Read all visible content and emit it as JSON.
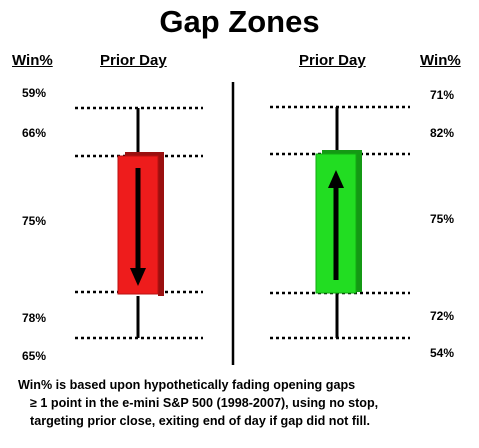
{
  "title": "Gap Zones",
  "left_panel": {
    "win_header": "Win%",
    "day_header": "Prior Day",
    "candle": "bearish",
    "candle_color": "#ee1c1c",
    "percentages": [
      "59%",
      "66%",
      "75%",
      "78%",
      "65%"
    ]
  },
  "right_panel": {
    "win_header": "Win%",
    "day_header": "Prior Day",
    "candle": "bullish",
    "candle_color": "#22dd22",
    "percentages": [
      "71%",
      "82%",
      "75%",
      "72%",
      "54%"
    ]
  },
  "caption": {
    "line1": "Win% is based upon hypothetically fading opening gaps",
    "line2": "≥ 1 point in the e-mini S&P 500 (1998-2007), using no stop,",
    "line3": "targeting prior close, exiting end of day if gap did not fill."
  }
}
